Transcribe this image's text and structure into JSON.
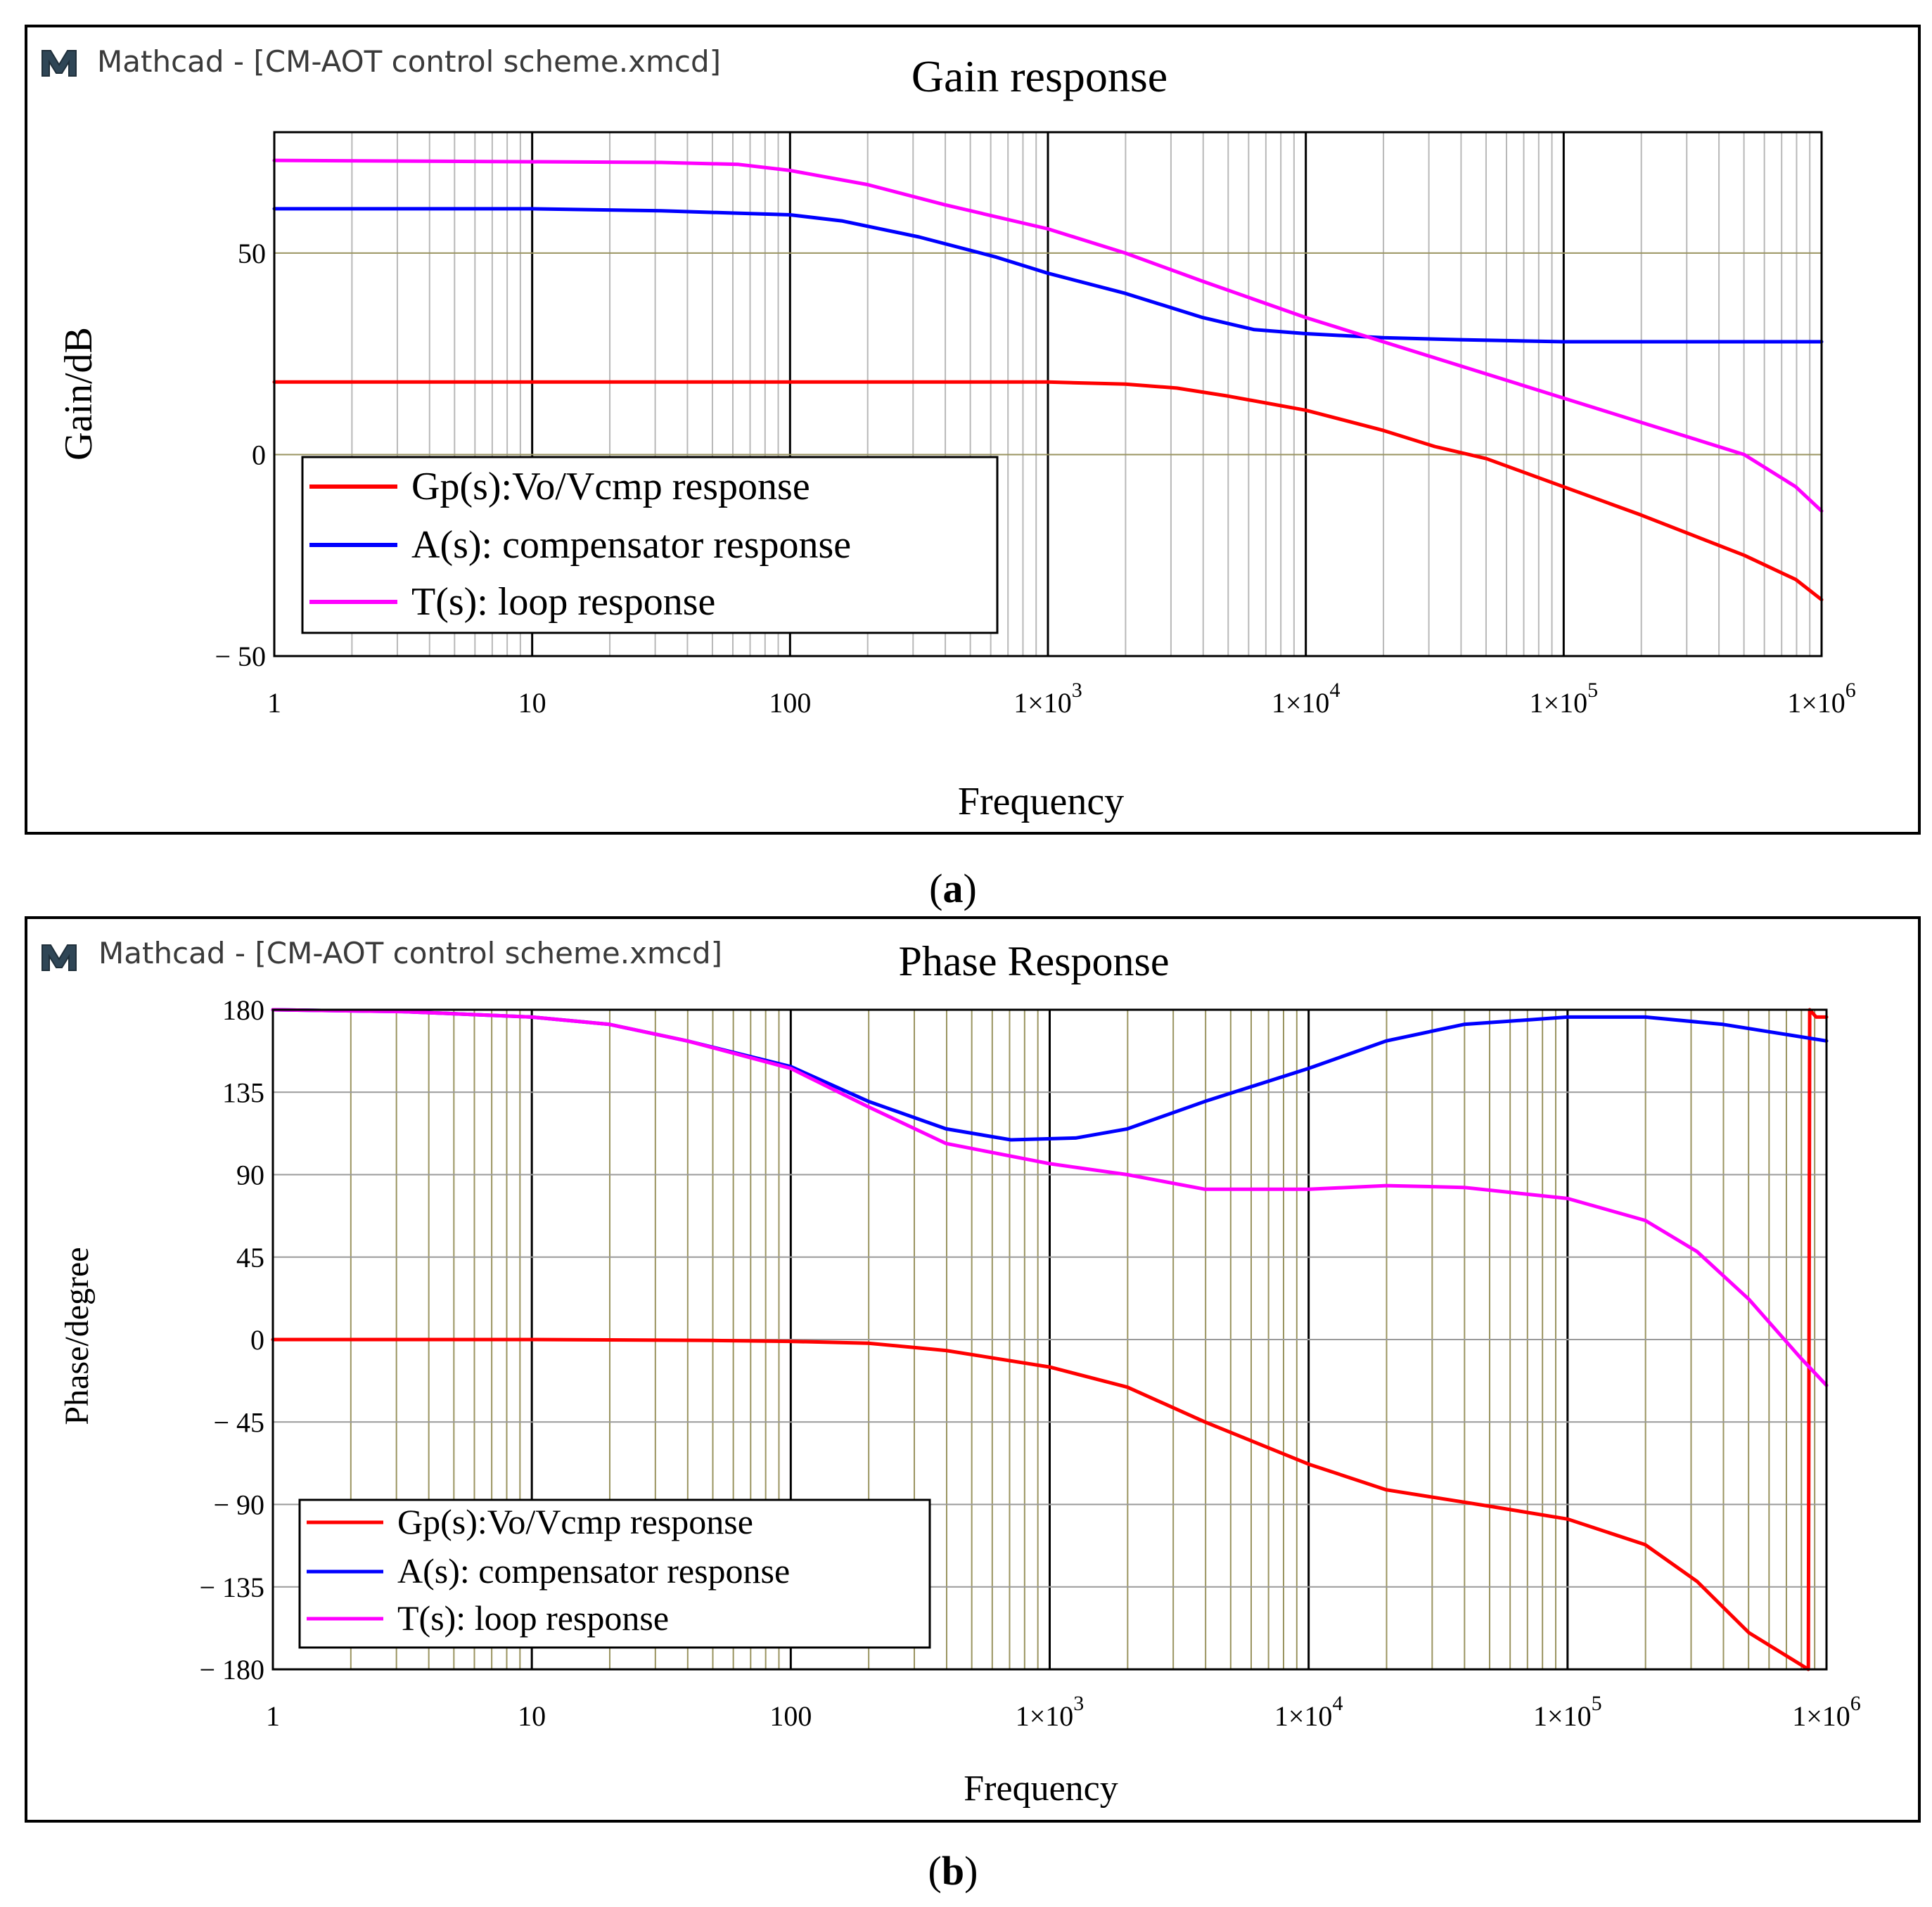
{
  "app": {
    "name": "Mathcad - [CM-AOT control scheme.xmcd]",
    "logo_letter": "M"
  },
  "colors": {
    "gp": "#ff0000",
    "a": "#0000ff",
    "t": "#ff00ff",
    "gain_minor_grid": "#b8b8b8",
    "phase_minor_grid": "#9a9460",
    "hline_gain": "#9a9460",
    "hline_phase": "#9a9a9a"
  },
  "chart_data": [
    {
      "type": "line",
      "panel": "a",
      "caption_letter": "a",
      "title": "Gain response",
      "xlabel": "Frequency",
      "ylabel": "Gain/dB",
      "xscale": "log",
      "xlim": [
        1,
        1000000
      ],
      "ylim": [
        -50,
        80
      ],
      "yticks": [
        50,
        0,
        -50
      ],
      "ytick_labels": [
        "50",
        "0",
        "− 50"
      ],
      "hlines": [
        50,
        0
      ],
      "xtick_labels": [
        {
          "base": "1",
          "exp": ""
        },
        {
          "base": "10",
          "exp": ""
        },
        {
          "base": "100",
          "exp": ""
        },
        {
          "base": "1×10",
          "exp": "3"
        },
        {
          "base": "1×10",
          "exp": "4"
        },
        {
          "base": "1×10",
          "exp": "5"
        },
        {
          "base": "1×10",
          "exp": "6"
        }
      ],
      "legend": {
        "position": "lower-left",
        "entries": [
          "Gp(s):Vo/Vcmp response",
          "A(s): compensator response",
          "T(s): loop response"
        ]
      },
      "series": [
        {
          "name": "Gp(s):Vo/Vcmp response",
          "color_key": "gp",
          "points": [
            [
              0,
              18
            ],
            [
              2.5,
              18
            ],
            [
              3,
              18
            ],
            [
              3.3,
              17.5
            ],
            [
              3.5,
              16.5
            ],
            [
              3.7,
              14.5
            ],
            [
              4,
              11
            ],
            [
              4.3,
              6
            ],
            [
              4.5,
              2
            ],
            [
              4.7,
              -1
            ],
            [
              5,
              -8
            ],
            [
              5.3,
              -15
            ],
            [
              5.5,
              -20
            ],
            [
              5.7,
              -25
            ],
            [
              5.9,
              -31
            ],
            [
              6,
              -36
            ]
          ]
        },
        {
          "name": "A(s): compensator response",
          "color_key": "a",
          "points": [
            [
              0,
              61
            ],
            [
              1,
              61
            ],
            [
              1.5,
              60.5
            ],
            [
              2,
              59.5
            ],
            [
              2.2,
              58
            ],
            [
              2.5,
              54
            ],
            [
              2.8,
              49
            ],
            [
              3,
              45
            ],
            [
              3.3,
              40
            ],
            [
              3.6,
              34
            ],
            [
              3.8,
              31
            ],
            [
              4,
              30
            ],
            [
              4.3,
              29
            ],
            [
              4.6,
              28.5
            ],
            [
              5,
              28
            ],
            [
              6,
              28
            ]
          ]
        },
        {
          "name": "T(s): loop response",
          "color_key": "t",
          "points": [
            [
              0,
              73
            ],
            [
              1.5,
              72.5
            ],
            [
              1.8,
              72
            ],
            [
              2,
              70.5
            ],
            [
              2.3,
              67
            ],
            [
              2.6,
              62
            ],
            [
              3,
              56
            ],
            [
              3.3,
              50
            ],
            [
              3.6,
              43
            ],
            [
              4,
              34
            ],
            [
              4.3,
              28
            ],
            [
              4.6,
              22
            ],
            [
              5,
              14
            ],
            [
              5.3,
              8
            ],
            [
              5.5,
              4
            ],
            [
              5.7,
              0
            ],
            [
              5.9,
              -8
            ],
            [
              6,
              -14
            ]
          ]
        }
      ]
    },
    {
      "type": "line",
      "panel": "b",
      "caption_letter": "b",
      "title": "Phase Response",
      "xlabel": "Frequency",
      "ylabel": "Phase/degree",
      "xscale": "log",
      "xlim": [
        1,
        1000000
      ],
      "ylim": [
        -180,
        180
      ],
      "yticks": [
        180,
        135,
        90,
        45,
        0,
        -45,
        -90,
        -135,
        -180
      ],
      "ytick_labels": [
        "180",
        "135",
        "90",
        "45",
        "0",
        "− 45",
        "− 90",
        "− 135",
        "− 180"
      ],
      "hlines": [
        135,
        90,
        45,
        0,
        -45,
        -90,
        -135
      ],
      "xtick_labels": [
        {
          "base": "1",
          "exp": ""
        },
        {
          "base": "10",
          "exp": ""
        },
        {
          "base": "100",
          "exp": ""
        },
        {
          "base": "1×10",
          "exp": "3"
        },
        {
          "base": "1×10",
          "exp": "4"
        },
        {
          "base": "1×10",
          "exp": "5"
        },
        {
          "base": "1×10",
          "exp": "6"
        }
      ],
      "legend": {
        "position": "lower-left",
        "entries": [
          "Gp(s):Vo/Vcmp response",
          "A(s): compensator response",
          "T(s): loop response"
        ]
      },
      "series": [
        {
          "name": "Gp(s):Vo/Vcmp response",
          "color_key": "gp",
          "points": [
            [
              0,
              0
            ],
            [
              1,
              0
            ],
            [
              1.7,
              -0.5
            ],
            [
              2,
              -1
            ],
            [
              2.3,
              -2
            ],
            [
              2.6,
              -6
            ],
            [
              3,
              -15
            ],
            [
              3.3,
              -26
            ],
            [
              3.6,
              -45
            ],
            [
              4,
              -68
            ],
            [
              4.3,
              -82
            ],
            [
              4.7,
              -91
            ],
            [
              5,
              -98
            ],
            [
              5.3,
              -112
            ],
            [
              5.5,
              -132
            ],
            [
              5.7,
              -160
            ],
            [
              5.93,
              -180
            ],
            [
              5.935,
              180
            ],
            [
              5.96,
              176
            ],
            [
              6,
              176
            ]
          ]
        },
        {
          "name": "A(s): compensator response",
          "color_key": "a",
          "points": [
            [
              0,
              180
            ],
            [
              0.5,
              179
            ],
            [
              1,
              176
            ],
            [
              1.3,
              172
            ],
            [
              1.6,
              163
            ],
            [
              2,
              149
            ],
            [
              2.3,
              130
            ],
            [
              2.6,
              115
            ],
            [
              2.85,
              109
            ],
            [
              3.1,
              110
            ],
            [
              3.3,
              115
            ],
            [
              3.6,
              130
            ],
            [
              4,
              148
            ],
            [
              4.3,
              163
            ],
            [
              4.6,
              172
            ],
            [
              5,
              176
            ],
            [
              5.3,
              176
            ],
            [
              5.6,
              172
            ],
            [
              6,
              163
            ]
          ]
        },
        {
          "name": "T(s): loop response",
          "color_key": "t",
          "points": [
            [
              0,
              180
            ],
            [
              0.5,
              179
            ],
            [
              1,
              176
            ],
            [
              1.3,
              172
            ],
            [
              1.6,
              163
            ],
            [
              2,
              148
            ],
            [
              2.3,
              127
            ],
            [
              2.6,
              107
            ],
            [
              3,
              96
            ],
            [
              3.3,
              90
            ],
            [
              3.6,
              82
            ],
            [
              4,
              82
            ],
            [
              4.3,
              84
            ],
            [
              4.6,
              83
            ],
            [
              5,
              77
            ],
            [
              5.3,
              65
            ],
            [
              5.5,
              48
            ],
            [
              5.7,
              22
            ],
            [
              5.9,
              -10
            ],
            [
              6,
              -25
            ]
          ]
        }
      ]
    }
  ]
}
